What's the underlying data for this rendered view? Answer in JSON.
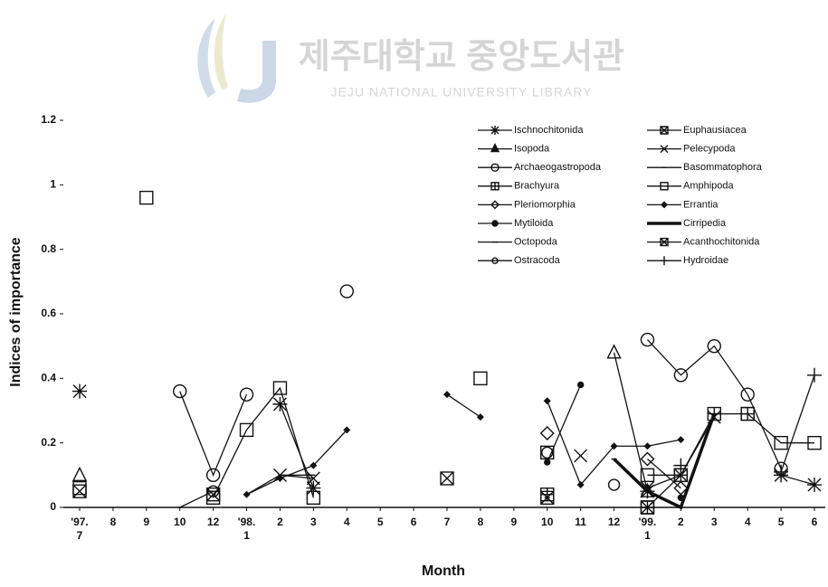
{
  "watermark": {
    "title": "제주대학교 중앙도서관",
    "subtitle": "JEJU NATIONAL UNIVERSITY LIBRARY"
  },
  "chart_data": {
    "type": "line",
    "y_label": "Indices of importance",
    "x_label": "Month",
    "categories": [
      "'97.\n7",
      "8",
      "9",
      "10",
      "12",
      "'98.\n1",
      "2",
      "3",
      "4",
      "5",
      "6",
      "7",
      "8",
      "9",
      "10",
      "11",
      "12",
      "'99.\n1",
      "2",
      "3",
      "4",
      "5",
      "6"
    ],
    "ylim": [
      0,
      1.2
    ],
    "yticks": [
      0,
      0.2,
      0.4,
      0.6,
      0.8,
      1,
      1.2
    ],
    "series": [
      {
        "name": "Ischnochitonida",
        "marker": "asterisk",
        "color": "#111",
        "values": [
          0.36,
          null,
          null,
          null,
          null,
          null,
          0.32,
          0.06,
          null,
          null,
          null,
          null,
          null,
          null,
          null,
          null,
          null,
          0.05,
          null,
          null,
          null,
          0.1,
          0.07
        ]
      },
      {
        "name": "Isopoda",
        "marker": "triangle",
        "color": "#111",
        "values": [
          0.1,
          null,
          null,
          null,
          null,
          null,
          null,
          null,
          null,
          null,
          null,
          null,
          null,
          null,
          null,
          null,
          0.48,
          0.05,
          null,
          null,
          null,
          null,
          null
        ]
      },
      {
        "name": "Archaeogastropoda",
        "marker": "circle",
        "color": "#111",
        "values": [
          null,
          null,
          null,
          0.36,
          0.1,
          0.35,
          null,
          null,
          0.67,
          null,
          null,
          null,
          null,
          null,
          null,
          null,
          null,
          0.52,
          0.41,
          0.5,
          0.35,
          0.12,
          null
        ]
      },
      {
        "name": "Brachyura",
        "marker": "plus-square",
        "color": "#111",
        "values": [
          null,
          null,
          null,
          null,
          null,
          null,
          null,
          null,
          null,
          null,
          null,
          null,
          null,
          null,
          0.04,
          null,
          null,
          0.0,
          0.1,
          0.29,
          0.29,
          null,
          null
        ]
      },
      {
        "name": "Pleriomorphia",
        "marker": "diamond",
        "color": "#111",
        "values": [
          null,
          null,
          null,
          null,
          null,
          null,
          null,
          null,
          null,
          null,
          null,
          null,
          null,
          null,
          0.23,
          null,
          null,
          0.15,
          0.06,
          null,
          null,
          null,
          null
        ]
      },
      {
        "name": "Mytiloida",
        "marker": "dot",
        "color": "#111",
        "values": [
          null,
          null,
          null,
          null,
          null,
          null,
          null,
          null,
          null,
          null,
          null,
          null,
          null,
          null,
          0.14,
          0.38,
          null,
          null,
          0.03,
          null,
          null,
          null,
          null
        ]
      },
      {
        "name": "Octopoda",
        "marker": "dash",
        "color": "#111",
        "values": [
          null,
          null,
          null,
          0.0,
          0.05,
          null,
          null,
          null,
          null,
          null,
          null,
          null,
          null,
          null,
          0.03,
          null,
          null,
          null,
          null,
          null,
          null,
          null,
          null
        ]
      },
      {
        "name": "Ostracoda",
        "marker": "ring",
        "color": "#111",
        "values": [
          null,
          null,
          null,
          null,
          0.05,
          null,
          null,
          null,
          null,
          null,
          null,
          null,
          null,
          null,
          0.17,
          null,
          0.07,
          null,
          null,
          null,
          null,
          null,
          null
        ]
      },
      {
        "name": "Euphausiacea",
        "marker": "x-square",
        "color": "#111",
        "values": [
          0.05,
          null,
          null,
          null,
          0.04,
          null,
          null,
          null,
          null,
          null,
          null,
          null,
          null,
          null,
          null,
          null,
          null,
          null,
          null,
          null,
          null,
          null,
          null
        ]
      },
      {
        "name": "Pelecypoda",
        "marker": "x",
        "color": "#111",
        "values": [
          null,
          null,
          null,
          null,
          null,
          null,
          0.1,
          0.09,
          null,
          null,
          null,
          null,
          null,
          null,
          null,
          0.16,
          null,
          0.06,
          0.1,
          0.28,
          null,
          null,
          null
        ]
      },
      {
        "name": "Basommatophora",
        "marker": "tick",
        "color": "#111",
        "values": [
          null,
          null,
          null,
          null,
          null,
          0.04,
          0.1,
          0.1,
          null,
          null,
          null,
          null,
          null,
          null,
          null,
          null,
          null,
          null,
          null,
          null,
          null,
          null,
          null
        ]
      },
      {
        "name": "Amphipoda",
        "marker": "square",
        "color": "#111",
        "values": [
          0.06,
          null,
          0.96,
          null,
          0.03,
          0.24,
          0.37,
          0.03,
          null,
          null,
          null,
          null,
          0.4,
          null,
          0.17,
          null,
          null,
          0.1,
          0.1,
          null,
          0.29,
          0.2,
          0.2
        ]
      },
      {
        "name": "Errantia",
        "marker": "small-diamond",
        "color": "#111",
        "values": [
          null,
          null,
          null,
          null,
          null,
          0.04,
          0.09,
          0.13,
          0.24,
          null,
          null,
          0.35,
          0.28,
          null,
          0.33,
          0.07,
          0.19,
          0.19,
          0.21,
          null,
          null,
          null,
          null
        ]
      },
      {
        "name": "Cirripedia",
        "marker": "thick",
        "color": "#111",
        "values": [
          null,
          null,
          null,
          null,
          null,
          null,
          null,
          null,
          null,
          null,
          null,
          null,
          null,
          null,
          null,
          null,
          0.15,
          0.05,
          0.0,
          0.29,
          null,
          null,
          null
        ]
      },
      {
        "name": "Acanthochitonida",
        "marker": "x-square",
        "color": "#111",
        "values": [
          null,
          null,
          null,
          null,
          null,
          null,
          null,
          null,
          null,
          null,
          null,
          0.09,
          null,
          null,
          0.03,
          null,
          null,
          0.0,
          null,
          null,
          null,
          null,
          null
        ]
      },
      {
        "name": "Hydroidae",
        "marker": "plus",
        "color": "#111",
        "values": [
          null,
          null,
          null,
          null,
          null,
          null,
          null,
          null,
          null,
          null,
          null,
          null,
          null,
          null,
          null,
          null,
          null,
          null,
          0.13,
          null,
          null,
          0.11,
          0.41
        ]
      }
    ]
  }
}
